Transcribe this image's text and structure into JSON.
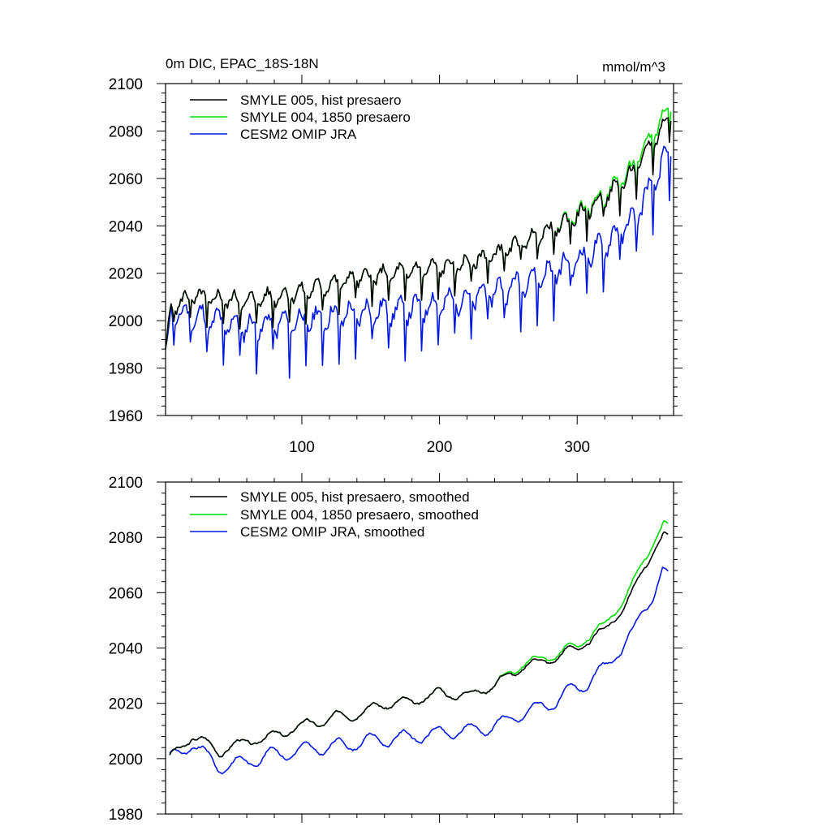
{
  "figure": {
    "title": "0m DIC, EPAC_18S-18N",
    "units": "mmol/m^3"
  },
  "chart_data": [
    {
      "type": "line",
      "panel": "top",
      "title": "0m DIC, EPAC_18S-18N",
      "units_label": "mmol/m^3",
      "xlim": [
        1,
        370
      ],
      "ylim": [
        1960,
        2100
      ],
      "xticks": [
        100,
        200,
        300
      ],
      "yticks": [
        1960,
        1980,
        2000,
        2020,
        2040,
        2060,
        2080,
        2100
      ],
      "series": [
        {
          "name": "SMYLE 005, hist presaero",
          "color": "#000000",
          "trend": [
            [
              1,
              1985
            ],
            [
              5,
              2006
            ],
            [
              20,
              2010
            ],
            [
              60,
              2008
            ],
            [
              100,
              2012
            ],
            [
              140,
              2018
            ],
            [
              180,
              2021
            ],
            [
              220,
              2024
            ],
            [
              250,
              2030
            ],
            [
              280,
              2038
            ],
            [
              300,
              2044
            ],
            [
              320,
              2052
            ],
            [
              340,
              2062
            ],
            [
              360,
              2080
            ],
            [
              368,
              2086
            ]
          ],
          "amplitude": 6,
          "seed": 5
        },
        {
          "name": "SMYLE 004, 1850 presaero",
          "color": "#00dd00",
          "trend": [
            [
              1,
              1985
            ],
            [
              5,
              2006
            ],
            [
              20,
              2010
            ],
            [
              60,
              2008
            ],
            [
              100,
              2012
            ],
            [
              140,
              2018
            ],
            [
              180,
              2021
            ],
            [
              220,
              2024
            ],
            [
              250,
              2030
            ],
            [
              280,
              2038
            ],
            [
              300,
              2045
            ],
            [
              320,
              2053
            ],
            [
              340,
              2064
            ],
            [
              360,
              2084
            ],
            [
              368,
              2090
            ]
          ],
          "amplitude": 6,
          "seed": 5
        },
        {
          "name": "CESM2 OMIP JRA",
          "color": "#0018e0",
          "trend": [
            [
              1,
              1984
            ],
            [
              5,
              2003
            ],
            [
              20,
              2002
            ],
            [
              60,
              1997
            ],
            [
              100,
              2000
            ],
            [
              140,
              2003
            ],
            [
              180,
              2005
            ],
            [
              220,
              2009
            ],
            [
              250,
              2014
            ],
            [
              280,
              2020
            ],
            [
              300,
              2025
            ],
            [
              320,
              2032
            ],
            [
              340,
              2042
            ],
            [
              360,
              2063
            ],
            [
              368,
              2072
            ]
          ],
          "amplitude": 9,
          "seed": 11
        }
      ]
    },
    {
      "type": "line",
      "panel": "bottom",
      "xlim": [
        1,
        370
      ],
      "ylim": [
        1980,
        2100
      ],
      "xticks": [
        100,
        200,
        300
      ],
      "yticks": [
        1980,
        2000,
        2020,
        2040,
        2060,
        2080,
        2100
      ],
      "series": [
        {
          "name": "SMYLE 005, hist presaero, smoothed",
          "color": "#000000",
          "trend": [
            [
              4,
              2000
            ],
            [
              20,
              2008
            ],
            [
              40,
              2003
            ],
            [
              60,
              2006
            ],
            [
              80,
              2008
            ],
            [
              100,
              2012
            ],
            [
              120,
              2014
            ],
            [
              140,
              2017
            ],
            [
              160,
              2020
            ],
            [
              180,
              2020
            ],
            [
              200,
              2024
            ],
            [
              220,
              2023
            ],
            [
              240,
              2027
            ],
            [
              260,
              2033
            ],
            [
              280,
              2036
            ],
            [
              300,
              2040
            ],
            [
              320,
              2046
            ],
            [
              340,
              2060
            ],
            [
              355,
              2075
            ],
            [
              363,
              2081
            ],
            [
              366,
              2080
            ]
          ],
          "amplitude": 3,
          "seed": 3
        },
        {
          "name": "SMYLE 004, 1850 presaero, smoothed",
          "color": "#00dd00",
          "trend": [
            [
              4,
              2000
            ],
            [
              20,
              2008
            ],
            [
              40,
              2003
            ],
            [
              60,
              2006
            ],
            [
              80,
              2008
            ],
            [
              100,
              2012
            ],
            [
              120,
              2014
            ],
            [
              140,
              2017
            ],
            [
              160,
              2020
            ],
            [
              180,
              2020
            ],
            [
              200,
              2024
            ],
            [
              220,
              2023
            ],
            [
              240,
              2027
            ],
            [
              260,
              2034
            ],
            [
              280,
              2037
            ],
            [
              300,
              2041
            ],
            [
              320,
              2048
            ],
            [
              340,
              2063
            ],
            [
              355,
              2078
            ],
            [
              363,
              2085
            ],
            [
              366,
              2084
            ]
          ],
          "amplitude": 3,
          "seed": 3
        },
        {
          "name": "CESM2 OMIP JRA, smoothed",
          "color": "#0018e0",
          "trend": [
            [
              4,
              2000
            ],
            [
              20,
              2005
            ],
            [
              40,
              1997
            ],
            [
              60,
              1999
            ],
            [
              80,
              2002
            ],
            [
              100,
              2003
            ],
            [
              120,
              2004
            ],
            [
              140,
              2006
            ],
            [
              160,
              2007
            ],
            [
              180,
              2008
            ],
            [
              200,
              2009
            ],
            [
              220,
              2010
            ],
            [
              240,
              2012
            ],
            [
              260,
              2016
            ],
            [
              280,
              2020
            ],
            [
              300,
              2025
            ],
            [
              320,
              2032
            ],
            [
              340,
              2045
            ],
            [
              355,
              2060
            ],
            [
              362,
              2068
            ],
            [
              366,
              2065
            ]
          ],
          "amplitude": 4,
          "seed": 9
        }
      ]
    }
  ]
}
